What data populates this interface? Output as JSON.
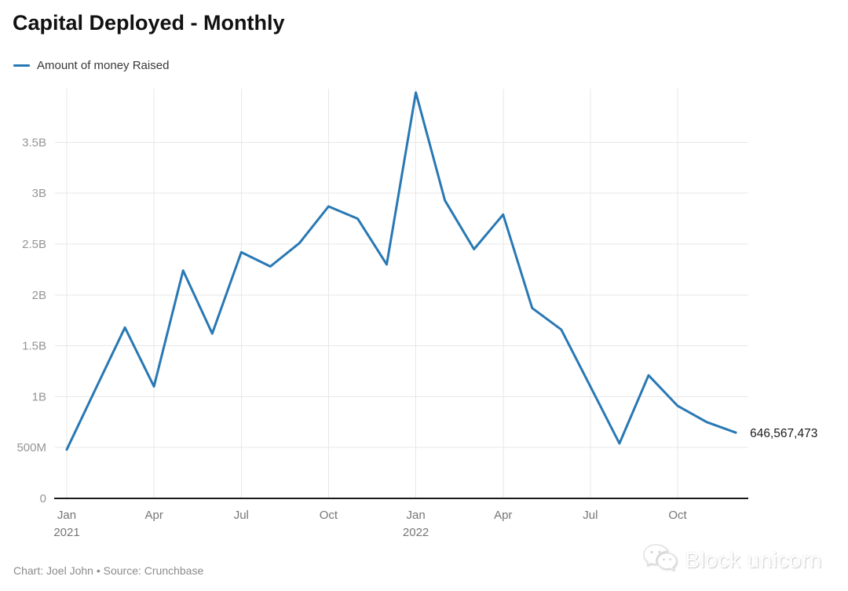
{
  "header": {
    "title": "Capital Deployed - Monthly",
    "legend": {
      "label": "Amount of money Raised",
      "swatch_color": "#2878b4"
    }
  },
  "footer": {
    "credit": "Chart: Joel John • Source: Crunchbase"
  },
  "watermark": {
    "text": "Block unicorn"
  },
  "chart_data": {
    "type": "line",
    "title": "Capital Deployed - Monthly",
    "legend_entries": [
      "Amount of money Raised"
    ],
    "legend_position": "top-left",
    "grid": true,
    "x": [
      "Jan 2021",
      "Feb 2021",
      "Mar 2021",
      "Apr 2021",
      "May 2021",
      "Jun 2021",
      "Jul 2021",
      "Aug 2021",
      "Sep 2021",
      "Oct 2021",
      "Nov 2021",
      "Dec 2021",
      "Jan 2022",
      "Feb 2022",
      "Mar 2022",
      "Apr 2022",
      "May 2022",
      "Jun 2022",
      "Jul 2022",
      "Aug 2022",
      "Sep 2022",
      "Oct 2022",
      "Nov 2022",
      "Dec 2022"
    ],
    "series": [
      {
        "name": "Amount of money Raised",
        "values_millions": [
          480,
          1080,
          1680,
          1100,
          2240,
          1620,
          2420,
          2280,
          2510,
          2870,
          2750,
          2300,
          3990,
          2930,
          2450,
          2790,
          1870,
          1660,
          1100,
          540,
          1210,
          910,
          750,
          646.567473
        ]
      }
    ],
    "end_label": "646,567,473",
    "ylim_millions": [
      0,
      4030
    ],
    "yticks": [
      {
        "value_millions": 0,
        "label": "0"
      },
      {
        "value_millions": 500,
        "label": "500M"
      },
      {
        "value_millions": 1000,
        "label": "1B"
      },
      {
        "value_millions": 1500,
        "label": "1.5B"
      },
      {
        "value_millions": 2000,
        "label": "2B"
      },
      {
        "value_millions": 2500,
        "label": "2.5B"
      },
      {
        "value_millions": 3000,
        "label": "3B"
      },
      {
        "value_millions": 3500,
        "label": "3.5B"
      }
    ],
    "xticks": [
      {
        "month_index": 0,
        "label": "Jan",
        "year": "2021"
      },
      {
        "month_index": 3,
        "label": "Apr",
        "year": ""
      },
      {
        "month_index": 6,
        "label": "Jul",
        "year": ""
      },
      {
        "month_index": 9,
        "label": "Oct",
        "year": ""
      },
      {
        "month_index": 12,
        "label": "Jan",
        "year": "2022"
      },
      {
        "month_index": 15,
        "label": "Apr",
        "year": ""
      },
      {
        "month_index": 18,
        "label": "Jul",
        "year": ""
      },
      {
        "month_index": 21,
        "label": "Oct",
        "year": ""
      }
    ],
    "line_color": "#2878b4",
    "grid_color": "#e7e7e7",
    "axis_color": "#1a1a1a",
    "ytick_label_color": "#949494",
    "xtick_label_color": "#767676",
    "end_label_color": "#1a1a1a"
  }
}
